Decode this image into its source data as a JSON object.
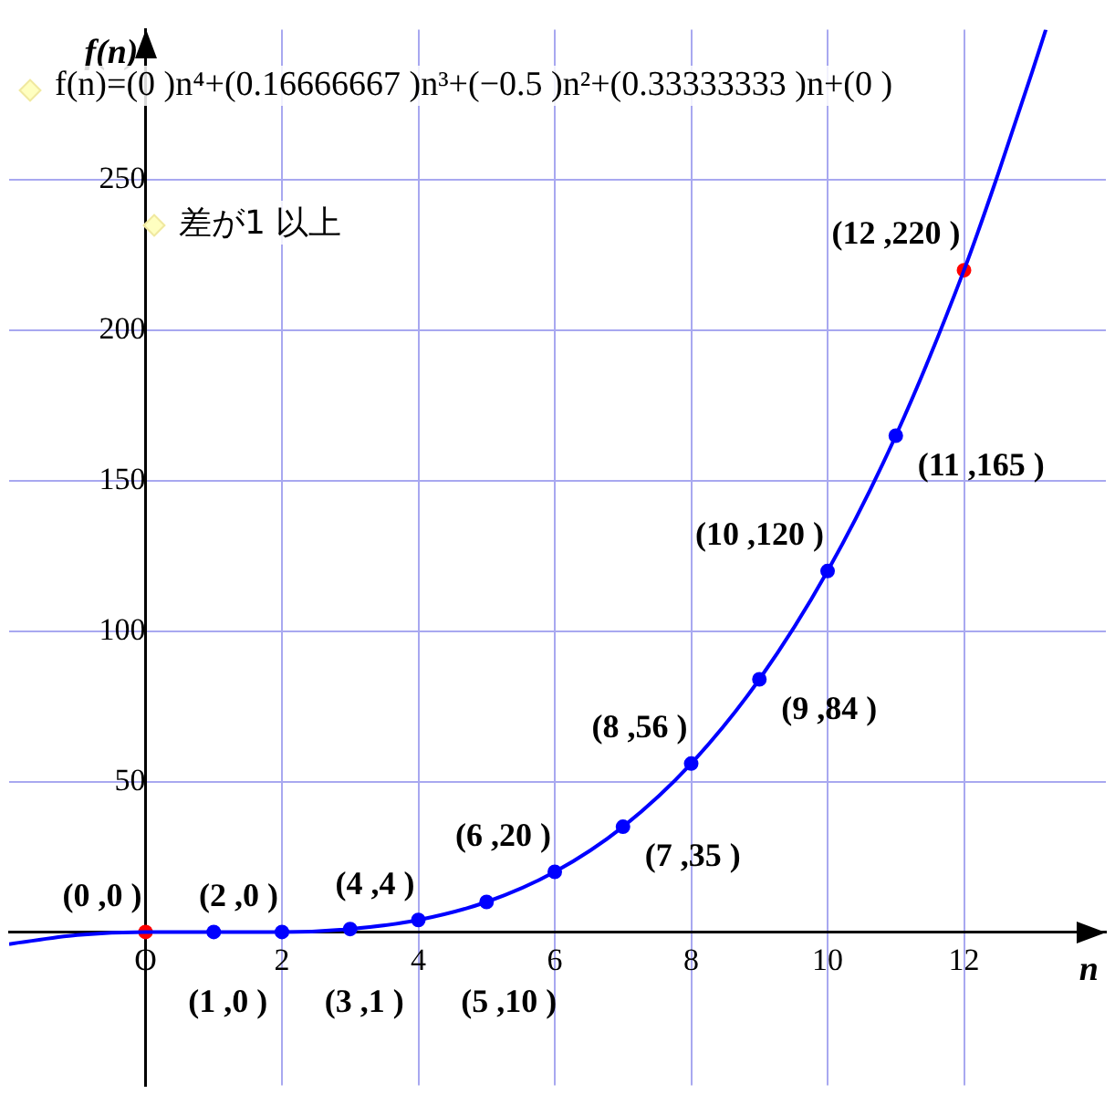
{
  "chart_data": {
    "type": "line",
    "xlabel": "n",
    "ylabel": "f(n)",
    "annotations": [
      "f(n)=(0 )n⁴+(0.16666667 )n³+(−0.5 )n²+(0.33333333 )n+(0 )",
      "差が1 以上"
    ],
    "xlim": [
      -2,
      14.08
    ],
    "ylim": [
      -51,
      300
    ],
    "xticks": [
      {
        "value": 0,
        "label": "O"
      },
      2,
      4,
      6,
      8,
      10,
      12
    ],
    "yticks": [
      50,
      100,
      150,
      200,
      250
    ],
    "grid": true,
    "legend": false,
    "series": [
      {
        "type": "line",
        "color": "#0000ff",
        "marker": "none",
        "x": [
          -2,
          -1,
          0,
          1,
          2,
          3,
          4,
          5,
          6,
          7,
          8,
          9,
          10,
          11,
          12,
          12.5,
          13,
          13.2
        ],
        "values": [
          -4,
          -1,
          0,
          0,
          0,
          1,
          4,
          10,
          20,
          35,
          56,
          84,
          120,
          165,
          220,
          252,
          286,
          300
        ]
      },
      {
        "type": "scatter",
        "color": "#0000ff",
        "marker": "circle",
        "colors": [
          "#ff0000",
          "#0000ff",
          "#0000ff",
          "#0000ff",
          "#0000ff",
          "#0000ff",
          "#0000ff",
          "#0000ff",
          "#0000ff",
          "#0000ff",
          "#0000ff",
          "#0000ff",
          "#ff0000"
        ],
        "x": [
          0,
          1,
          2,
          3,
          4,
          5,
          6,
          7,
          8,
          9,
          10,
          11,
          12
        ],
        "values": [
          0,
          0,
          0,
          1,
          4,
          10,
          20,
          35,
          56,
          84,
          120,
          165,
          220
        ],
        "value_labels": [
          "(0 ,0 )",
          "(1 ,0 )",
          "(2 ,0 )",
          "(3 ,1 )",
          "(4 ,4 )",
          "(5 ,10 )",
          "(6 ,20 )",
          "(7 ,35 )",
          "(8 ,56 )",
          "(9 ,84 )",
          "(10 ,120 )",
          "(11 ,165 )",
          "(12 ,220 )"
        ]
      }
    ]
  }
}
